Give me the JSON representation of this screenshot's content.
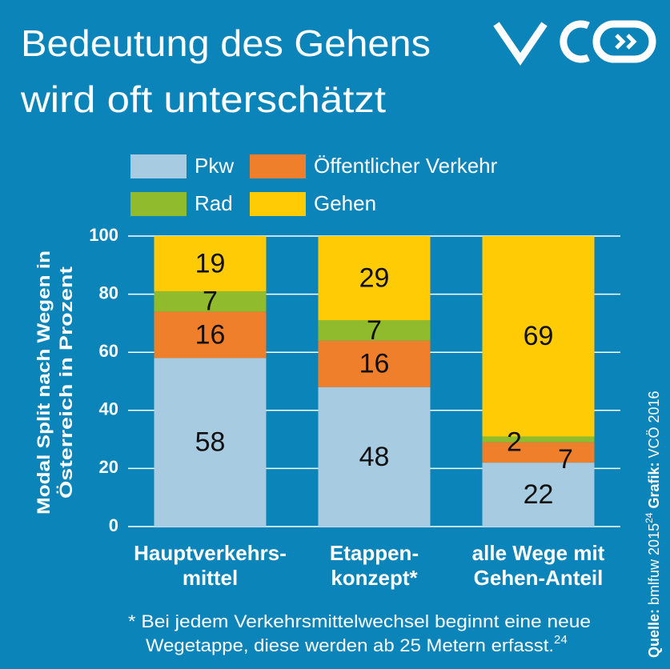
{
  "chart_data": {
    "type": "stacked-bar",
    "title": [
      "Bedeutung des Gehens",
      "wird oft unterschätzt"
    ],
    "y_label": [
      "Modal Split nach Wegen in",
      "Österreich in Prozent"
    ],
    "categories": [
      [
        "Hauptverkehrs-",
        "mittel"
      ],
      [
        "Etappen-",
        "konzept*"
      ],
      [
        "alle Wege mit",
        "Gehen-Anteil"
      ]
    ],
    "series": [
      {
        "name": "Pkw",
        "color": "#a7cbe1",
        "values": [
          58,
          48,
          22
        ]
      },
      {
        "name": "Öffentlicher Verkehr",
        "color": "#ef7f2b",
        "values": [
          16,
          16,
          7
        ]
      },
      {
        "name": "Rad",
        "color": "#8fbb2c",
        "values": [
          7,
          7,
          2
        ]
      },
      {
        "name": "Gehen",
        "color": "#ffcb05",
        "values": [
          19,
          29,
          69
        ]
      }
    ],
    "ylim": [
      0,
      100
    ],
    "yticks": [
      0,
      20,
      40,
      60,
      80,
      100
    ],
    "grid": true,
    "footnote": {
      "lines": [
        "* Bei jedem Verkehrsmittelwechsel beginnt eine neue",
        "Wegetappe, diese werden ab 25 Metern erfasst."
      ],
      "ref": "24"
    },
    "source": {
      "label": "Quelle:",
      "text": "bmlfuw 2015",
      "ref": "24",
      "credit_label": "Grafik:",
      "credit": "VCÖ 2016"
    }
  }
}
